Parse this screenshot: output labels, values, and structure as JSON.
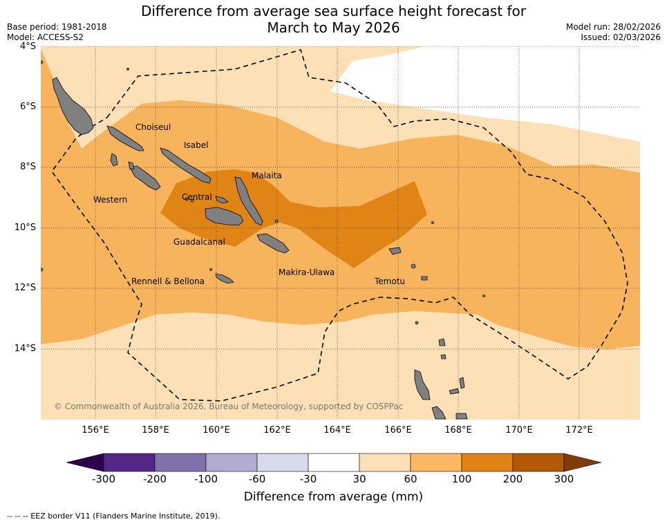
{
  "title": {
    "line1": "Difference from average sea surface height forecast for",
    "line2": "March to May 2026"
  },
  "meta": {
    "base_period": "Base period: 1981-2018",
    "model": "Model: ACCESS-S2",
    "model_run": "Model run: 28/02/2026",
    "issued": "Issued: 02/03/2026"
  },
  "map": {
    "lat_labels": [
      "4°S",
      "6°S",
      "8°S",
      "10°S",
      "12°S",
      "14°S"
    ],
    "lon_labels": [
      "156°E",
      "158°E",
      "160°E",
      "162°E",
      "164°E",
      "166°E",
      "168°E",
      "170°E",
      "172°E"
    ],
    "provinces": [
      "Choiseul",
      "Isabel",
      "Malaita",
      "Western",
      "Central",
      "Guadalcanal",
      "Makira-Ulawa",
      "Temotu",
      "Rennell & Bellona"
    ],
    "copyright": "© Commonwealth of Australia 2026, Bureau of Meteorology, supported by COSPPac",
    "colors": {
      "ocean_white": "#ffffff",
      "band_30_60": "#fde0b6",
      "band_60_100": "#f8b45d",
      "band_100_200": "#e08416",
      "land": "#808080"
    }
  },
  "colorbar": {
    "ticks": [
      "-300",
      "-200",
      "-100",
      "-60",
      "-30",
      "30",
      "60",
      "100",
      "200",
      "300"
    ],
    "colors": [
      "#2d004b",
      "#542788",
      "#8073ac",
      "#b2abd2",
      "#d8daeb",
      "#ffffff",
      "#fee0b6",
      "#fdb863",
      "#e08214",
      "#b35806",
      "#7f3b08"
    ],
    "label": "Difference from average (mm)"
  },
  "footnote": "--  --  -- EEZ border V11 (Flanders Marine Institute, 2019)."
}
